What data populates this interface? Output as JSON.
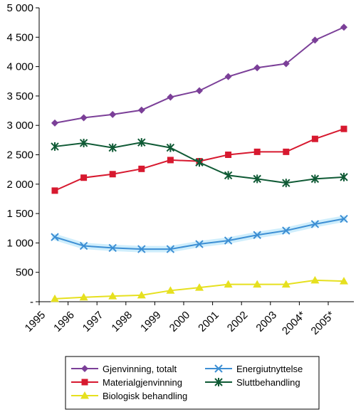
{
  "chart_data": {
    "type": "line",
    "title": "",
    "xlabel": "",
    "ylabel": "",
    "categories": [
      "1995",
      "1996",
      "1997",
      "1998",
      "1999",
      "2000",
      "2001",
      "2002",
      "2003",
      "2004*",
      "2005*"
    ],
    "ylim": [
      0,
      5000
    ],
    "yticks": [
      0,
      500,
      1000,
      1500,
      2000,
      2500,
      3000,
      3500,
      4000,
      4500,
      5000
    ],
    "ytick_labels": [
      "-",
      "500",
      "1 000",
      "1 500",
      "2 000",
      "2 500",
      "3 000",
      "3 500",
      "4 000",
      "4 500",
      "5 000"
    ],
    "grid": false,
    "legend_position": "bottom",
    "series": [
      {
        "name": "Gjenvinning, totalt",
        "color": "#7b3f98",
        "marker": "diamond",
        "values": [
          3040,
          3130,
          3185,
          3260,
          3480,
          3590,
          3830,
          3980,
          4050,
          4450,
          4670
        ]
      },
      {
        "name": "Materialgjenvinning",
        "color": "#d7192f",
        "marker": "square",
        "values": [
          1890,
          2110,
          2170,
          2260,
          2410,
          2390,
          2500,
          2550,
          2550,
          2770,
          2940
        ]
      },
      {
        "name": "Biologisk behandling",
        "color": "#e6e01f",
        "marker": "triangle",
        "values": [
          50,
          75,
          95,
          110,
          190,
          240,
          295,
          295,
          295,
          365,
          350
        ]
      },
      {
        "name": "Energiutnyttelse",
        "color": "#3d8fd4",
        "marker": "x",
        "values": [
          1100,
          950,
          915,
          895,
          895,
          980,
          1040,
          1135,
          1210,
          1320,
          1410
        ]
      },
      {
        "name": "Sluttbehandling",
        "color": "#0f5a35",
        "marker": "star",
        "values": [
          2640,
          2700,
          2620,
          2710,
          2620,
          2370,
          2150,
          2090,
          2020,
          2090,
          2120
        ]
      }
    ]
  }
}
